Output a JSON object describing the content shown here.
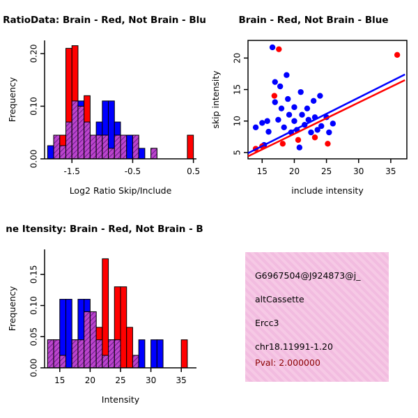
{
  "figure": {
    "background": "#ffffff",
    "colors": {
      "red": "#FF0000",
      "blue": "#0000FF",
      "overlap_purple": "#bb44cc",
      "overlap_hatch": "#551177"
    }
  },
  "chart_data": [
    {
      "id": "ratio-hist",
      "type": "bar",
      "subtype": "overlaid-histogram",
      "title": "RatioData: Brain - Red, Not Brain - Blu",
      "xlabel": "Log2 Ratio Skip/Include",
      "ylabel": "Frequency",
      "xlim": [
        -1.95,
        0.55
      ],
      "ylim": [
        0,
        0.225
      ],
      "xticks": [
        -1.5,
        -0.5,
        0.5
      ],
      "xtick_labels": [
        "-1.5",
        "-0.5",
        "0.5"
      ],
      "yticks": [
        0,
        0.1,
        0.2
      ],
      "ytick_labels": [
        "0.00",
        "0.10",
        "0.20"
      ],
      "bin_start": -1.9,
      "bin_width": 0.1,
      "overlap_color": "#bb44cc",
      "series": [
        {
          "name": "Brain (red)",
          "color": "#FF0000",
          "values": [
            0,
            0.045,
            0.045,
            0.21,
            0.215,
            0.1,
            0.12,
            0.045,
            0.045,
            0.045,
            0.02,
            0.045,
            0.045,
            0,
            0.045,
            0,
            0,
            0.02,
            0,
            0,
            0,
            0,
            0,
            0.045
          ]
        },
        {
          "name": "Not Brain (blue)",
          "color": "#0000FF",
          "values": [
            0.025,
            0.045,
            0.025,
            0.07,
            0.11,
            0.11,
            0.07,
            0.045,
            0.07,
            0.11,
            0.11,
            0.07,
            0.045,
            0.045,
            0.045,
            0.02,
            0,
            0.02,
            0,
            0,
            0,
            0,
            0,
            0
          ]
        }
      ]
    },
    {
      "id": "intensity-scatter",
      "type": "scatter",
      "title": "Brain - Red, Not Brain - Blue",
      "xlabel": "include intensity",
      "ylabel": "skip intensity",
      "xlim": [
        12.8,
        37.5
      ],
      "ylim": [
        4,
        22.8
      ],
      "xticks": [
        15,
        20,
        25,
        30,
        35
      ],
      "xtick_labels": [
        "15",
        "20",
        "25",
        "30",
        "35"
      ],
      "yticks": [
        5,
        10,
        15,
        20
      ],
      "ytick_labels": [
        "5",
        "10",
        "15",
        "20"
      ],
      "series": [
        {
          "name": "Not Brain (blue)",
          "color": "#0000FF",
          "points": [
            [
              16.6,
              21.7
            ],
            [
              14,
              9
            ],
            [
              15,
              9.7
            ],
            [
              15.3,
              6.2
            ],
            [
              15.8,
              10
            ],
            [
              16,
              8.3
            ],
            [
              17,
              16.2
            ],
            [
              17,
              13
            ],
            [
              17.5,
              10.2
            ],
            [
              17.8,
              15.5
            ],
            [
              18,
              12
            ],
            [
              18.4,
              9
            ],
            [
              18.8,
              17.3
            ],
            [
              19,
              13.5
            ],
            [
              19.2,
              11
            ],
            [
              19.5,
              8.2
            ],
            [
              20,
              12.2
            ],
            [
              20,
              10
            ],
            [
              20.4,
              8.6
            ],
            [
              20.8,
              5.8
            ],
            [
              21,
              14.6
            ],
            [
              21.2,
              11
            ],
            [
              21.6,
              9.4
            ],
            [
              22,
              12
            ],
            [
              22.2,
              10.2
            ],
            [
              22.6,
              8.2
            ],
            [
              23,
              13.2
            ],
            [
              23.2,
              10.6
            ],
            [
              23.6,
              8.6
            ],
            [
              24,
              14
            ],
            [
              24.2,
              9.2
            ],
            [
              25,
              10.6
            ],
            [
              25.4,
              8.2
            ],
            [
              26,
              9.6
            ]
          ]
        },
        {
          "name": "Brain (red)",
          "color": "#FF0000",
          "points": [
            [
              17.6,
              21.4
            ],
            [
              36,
              20.5
            ],
            [
              16.9,
              14
            ],
            [
              15,
              6
            ],
            [
              14,
              5.6
            ],
            [
              18.2,
              6.4
            ],
            [
              20.6,
              7
            ],
            [
              23.2,
              7.4
            ],
            [
              25.2,
              6.4
            ]
          ]
        }
      ],
      "lines": [
        {
          "name": "fit-not-brain",
          "color": "#0000FF",
          "x1": 12.8,
          "y1": 4.9,
          "x2": 37.2,
          "y2": 17.4
        },
        {
          "name": "fit-brain",
          "color": "#FF0000",
          "x1": 12.8,
          "y1": 4.4,
          "x2": 37.2,
          "y2": 16.5
        }
      ]
    },
    {
      "id": "gene-intensity-hist",
      "type": "bar",
      "subtype": "overlaid-histogram",
      "title": "ne Itensity: Brain - Red, Not Brain - B",
      "xlabel": "Intensity",
      "ylabel": "Frequency",
      "xlim": [
        12.5,
        37.5
      ],
      "ylim": [
        0,
        0.19
      ],
      "xticks": [
        15,
        20,
        25,
        30,
        35
      ],
      "xtick_labels": [
        "15",
        "20",
        "25",
        "30",
        "35"
      ],
      "yticks": [
        0,
        0.05,
        0.1,
        0.15
      ],
      "ytick_labels": [
        "0.00",
        "0.05",
        "0.10",
        "0.15"
      ],
      "bin_start": 13,
      "bin_width": 1,
      "overlap_color": "#bb44cc",
      "series": [
        {
          "name": "Brain (red)",
          "color": "#FF0000",
          "values": [
            0.045,
            0.045,
            0.02,
            0,
            0.045,
            0.045,
            0.09,
            0.09,
            0.065,
            0.175,
            0.045,
            0.13,
            0.13,
            0.065,
            0.02,
            0,
            0,
            0,
            0,
            0,
            0,
            0,
            0.045,
            0
          ]
        },
        {
          "name": "Not Brain (blue)",
          "color": "#0000FF",
          "values": [
            0.045,
            0.045,
            0.11,
            0.11,
            0.045,
            0.11,
            0.11,
            0.09,
            0.045,
            0.02,
            0.045,
            0.045,
            0,
            0,
            0.02,
            0.045,
            0,
            0.045,
            0.045,
            0,
            0,
            0,
            0,
            0
          ]
        }
      ]
    }
  ],
  "info_panel": {
    "bg": "#f6c9e5",
    "pval_color": "#8b0000",
    "lines": {
      "probe_id": "G6967504@J924873@j_",
      "event_type": "altCassette",
      "gene": "Ercc3",
      "location": "chr18.11991-1.20",
      "pval": "Pval: 2.000000"
    }
  }
}
